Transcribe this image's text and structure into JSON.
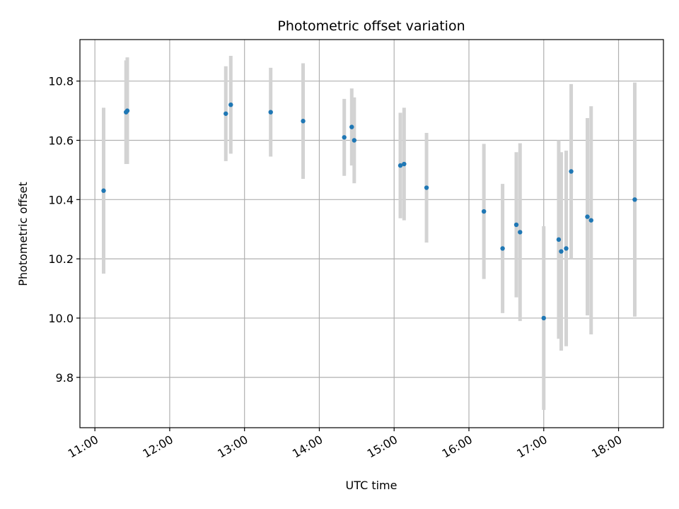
{
  "chart_data": {
    "type": "scatter",
    "title": "Photometric offset variation",
    "xlabel": "UTC time",
    "ylabel": "Photometric offset",
    "xlim": [
      "10:48",
      "18:36"
    ],
    "ylim": [
      9.63,
      10.94
    ],
    "x_ticks": [
      "11:00",
      "12:00",
      "13:00",
      "14:00",
      "15:00",
      "16:00",
      "17:00",
      "18:00"
    ],
    "y_ticks": [
      9.8,
      10.0,
      10.2,
      10.4,
      10.6,
      10.8
    ],
    "grid": true,
    "marker_color": "#1f77b4",
    "errorbar_color": "#d3d3d3",
    "series": [
      {
        "points": [
          {
            "time": "11:07",
            "y": 10.43,
            "err": 0.28
          },
          {
            "time": "11:25",
            "y": 10.695,
            "err": 0.175
          },
          {
            "time": "11:26",
            "y": 10.7,
            "err": 0.18
          },
          {
            "time": "12:45",
            "y": 10.69,
            "err": 0.16
          },
          {
            "time": "12:49",
            "y": 10.72,
            "err": 0.165
          },
          {
            "time": "13:21",
            "y": 10.695,
            "err": 0.15
          },
          {
            "time": "13:47",
            "y": 10.665,
            "err": 0.195
          },
          {
            "time": "14:20",
            "y": 10.61,
            "err": 0.13
          },
          {
            "time": "14:26",
            "y": 10.645,
            "err": 0.13
          },
          {
            "time": "14:28",
            "y": 10.6,
            "err": 0.145
          },
          {
            "time": "15:05",
            "y": 10.515,
            "err": 0.178
          },
          {
            "time": "15:08",
            "y": 10.52,
            "err": 0.19
          },
          {
            "time": "15:26",
            "y": 10.44,
            "err": 0.185
          },
          {
            "time": "16:12",
            "y": 10.36,
            "err": 0.228
          },
          {
            "time": "16:27",
            "y": 10.235,
            "err": 0.218
          },
          {
            "time": "16:38",
            "y": 10.315,
            "err": 0.245
          },
          {
            "time": "16:41",
            "y": 10.29,
            "err": 0.3
          },
          {
            "time": "17:00",
            "y": 10.0,
            "err": 0.31
          },
          {
            "time": "17:12",
            "y": 10.265,
            "err": 0.335
          },
          {
            "time": "17:14",
            "y": 10.225,
            "err": 0.335
          },
          {
            "time": "17:18",
            "y": 10.235,
            "err": 0.33
          },
          {
            "time": "17:22",
            "y": 10.495,
            "err": 0.295
          },
          {
            "time": "17:35",
            "y": 10.342,
            "err": 0.333
          },
          {
            "time": "17:38",
            "y": 10.33,
            "err": 0.385
          },
          {
            "time": "18:13",
            "y": 10.4,
            "err": 0.395
          }
        ]
      }
    ]
  }
}
